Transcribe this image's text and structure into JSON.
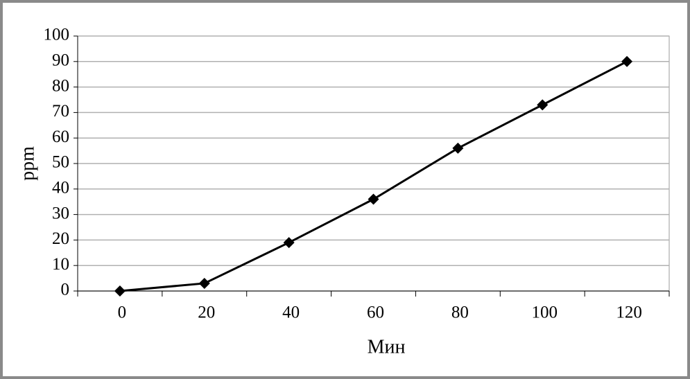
{
  "chart_data": {
    "type": "line",
    "x_label": "Мин",
    "y_label": "ppm",
    "categories": [
      "0",
      "20",
      "40",
      "60",
      "80",
      "100",
      "120"
    ],
    "series": [
      {
        "name": "ppm",
        "color": "#000000",
        "values": [
          0,
          3,
          19,
          36,
          56,
          73,
          90
        ]
      }
    ],
    "ylim": [
      0,
      100
    ],
    "yticks": [
      0,
      10,
      20,
      30,
      40,
      50,
      60,
      70,
      80,
      90,
      100
    ],
    "grid": true
  }
}
